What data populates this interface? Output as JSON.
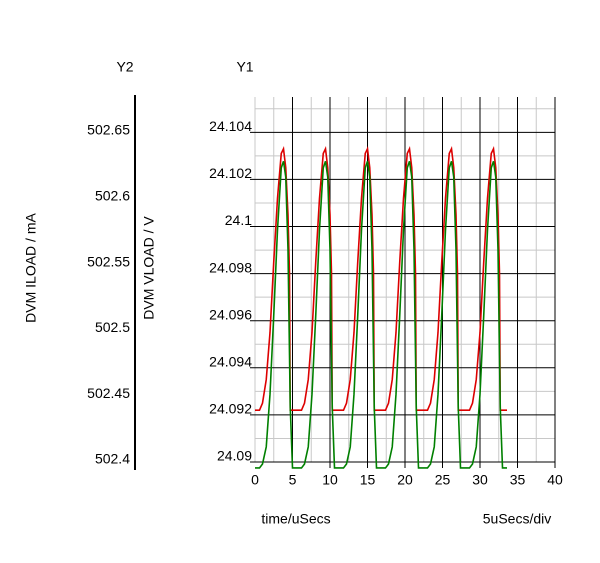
{
  "chart_data": {
    "type": "line",
    "y2_title": "Y2",
    "y1_title": "Y1",
    "xlabel": "time/uSecs",
    "scale_label": "5uSecs/div",
    "ylabel": "DVM VLOAD / V",
    "y2label": "DVM ILOAD / mA",
    "xlim": [
      0,
      40
    ],
    "xticks": [
      0,
      5,
      10,
      15,
      20,
      25,
      30,
      35,
      40
    ],
    "xminorticks": [
      0,
      2.5,
      7.5,
      12.5,
      17.5,
      22.5,
      27.5,
      32.5,
      37.5
    ],
    "ylim": [
      24.09,
      24.1055
    ],
    "yticks": [
      24.09,
      24.092,
      24.094,
      24.096,
      24.098,
      24.1,
      24.102,
      24.104
    ],
    "yminorticks": [
      24.091,
      24.093,
      24.095,
      24.097,
      24.099,
      24.101,
      24.103,
      24.105
    ],
    "y2lim": [
      502.3985,
      502.6758
    ],
    "y2ticks": [
      502.4,
      502.45,
      502.5,
      502.55,
      502.6,
      502.65
    ],
    "grid": true,
    "x": [
      0,
      0.6,
      1,
      1.5,
      2,
      2.5,
      3,
      3.5,
      3.8,
      4.1,
      4.4,
      4.6,
      4.7,
      5,
      5.6,
      6.2,
      6.6,
      7.1,
      7.6,
      8.1,
      8.6,
      9.1,
      9.4,
      9.7,
      10,
      10.2,
      10.3,
      10.6,
      11.2,
      11.8,
      12.2,
      12.7,
      13.2,
      13.7,
      14.2,
      14.7,
      15,
      15.3,
      15.6,
      15.8,
      15.9,
      16.2,
      16.8,
      17.4,
      17.8,
      18.3,
      18.8,
      19.3,
      19.8,
      20.3,
      20.6,
      20.9,
      21.2,
      21.4,
      21.5,
      21.8,
      22.4,
      23,
      23.4,
      23.9,
      24.4,
      24.9,
      25.4,
      25.9,
      26.2,
      26.5,
      26.8,
      27,
      27.1,
      27.4,
      28,
      28.6,
      29,
      29.5,
      30,
      30.5,
      31,
      31.5,
      31.8,
      32.1,
      32.4,
      32.6,
      32.7,
      33,
      33.6
    ],
    "series": [
      {
        "color": "#dd0000",
        "axis": "y",
        "values": [
          24.0922,
          24.0922,
          24.0925,
          24.0935,
          24.0955,
          24.0985,
          24.1012,
          24.1031,
          24.1033,
          24.1025,
          24.1005,
          24.098,
          24.0922,
          24.0922,
          24.0922,
          24.0922,
          24.0925,
          24.0935,
          24.0955,
          24.0985,
          24.1012,
          24.1031,
          24.1033,
          24.1025,
          24.1005,
          24.098,
          24.0922,
          24.0922,
          24.0922,
          24.0922,
          24.0925,
          24.0935,
          24.0955,
          24.0985,
          24.1012,
          24.1031,
          24.1033,
          24.1025,
          24.1005,
          24.098,
          24.0922,
          24.0922,
          24.0922,
          24.0922,
          24.0925,
          24.0935,
          24.0955,
          24.0985,
          24.1012,
          24.1031,
          24.1033,
          24.1025,
          24.1005,
          24.098,
          24.0922,
          24.0922,
          24.0922,
          24.0922,
          24.0925,
          24.0935,
          24.0955,
          24.0985,
          24.1012,
          24.1031,
          24.1033,
          24.1025,
          24.1005,
          24.098,
          24.0922,
          24.0922,
          24.0922,
          24.0922,
          24.0925,
          24.0935,
          24.0955,
          24.0985,
          24.1012,
          24.1031,
          24.1033,
          24.1025,
          24.1005,
          24.098,
          24.0922,
          24.0922,
          24.0922
        ]
      },
      {
        "color": "#008000",
        "axis": "y2",
        "values": [
          502.394,
          502.394,
          502.397,
          502.41,
          502.45,
          502.51,
          502.575,
          502.622,
          502.627,
          502.615,
          502.56,
          502.48,
          502.44,
          502.394,
          502.394,
          502.394,
          502.397,
          502.41,
          502.45,
          502.51,
          502.575,
          502.622,
          502.627,
          502.615,
          502.56,
          502.48,
          502.44,
          502.394,
          502.394,
          502.394,
          502.397,
          502.41,
          502.45,
          502.51,
          502.575,
          502.622,
          502.627,
          502.615,
          502.56,
          502.48,
          502.44,
          502.394,
          502.394,
          502.394,
          502.397,
          502.41,
          502.45,
          502.51,
          502.575,
          502.622,
          502.627,
          502.615,
          502.56,
          502.48,
          502.44,
          502.394,
          502.394,
          502.394,
          502.397,
          502.41,
          502.45,
          502.51,
          502.575,
          502.622,
          502.627,
          502.615,
          502.56,
          502.48,
          502.44,
          502.394,
          502.394,
          502.394,
          502.397,
          502.41,
          502.45,
          502.51,
          502.575,
          502.622,
          502.627,
          502.615,
          502.56,
          502.48,
          502.44,
          502.394,
          502.394
        ]
      }
    ]
  }
}
